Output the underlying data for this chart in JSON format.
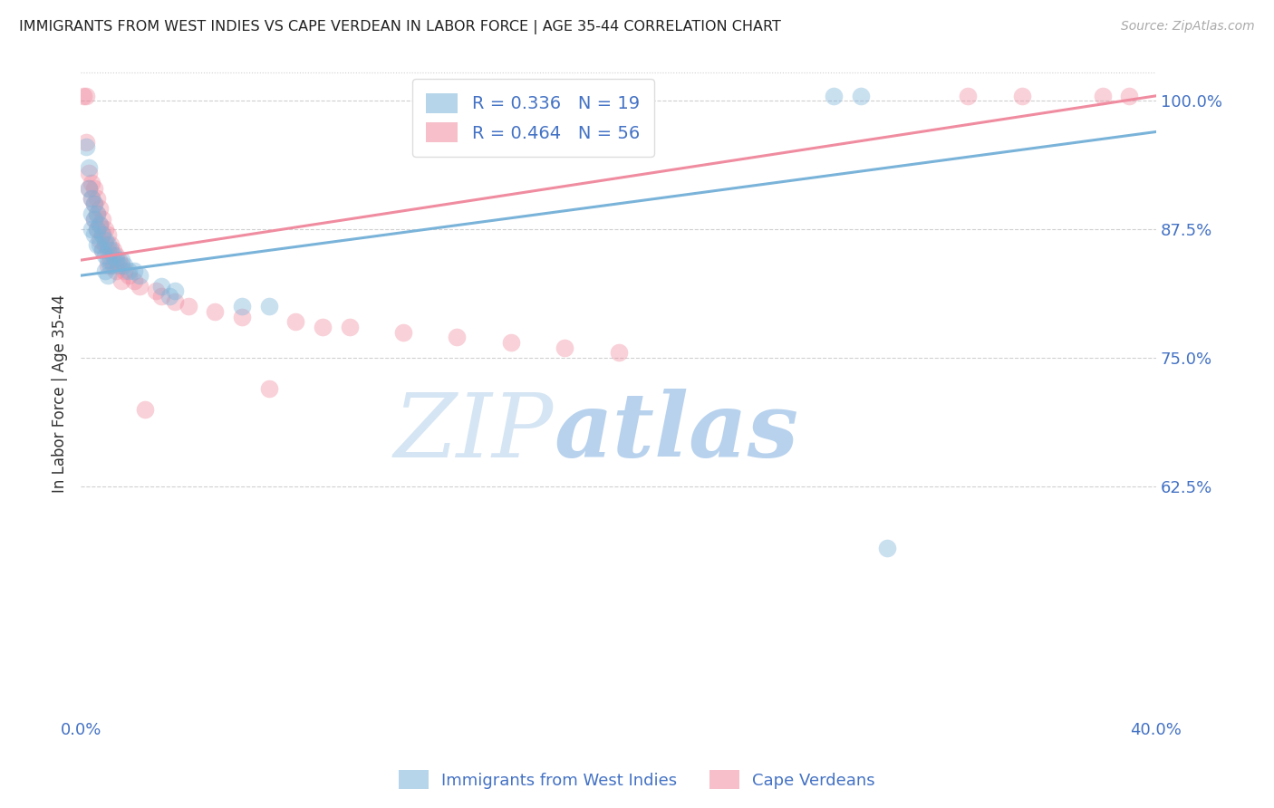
{
  "title": "IMMIGRANTS FROM WEST INDIES VS CAPE VERDEAN IN LABOR FORCE | AGE 35-44 CORRELATION CHART",
  "source": "Source: ZipAtlas.com",
  "ylabel": "In Labor Force | Age 35-44",
  "x_min": 0.0,
  "x_max": 0.4,
  "y_min": 0.4,
  "y_max": 1.03,
  "x_ticks": [
    0.0,
    0.05,
    0.1,
    0.15,
    0.2,
    0.25,
    0.3,
    0.35,
    0.4
  ],
  "x_tick_labels": [
    "0.0%",
    "",
    "",
    "",
    "",
    "",
    "",
    "",
    "40.0%"
  ],
  "y_ticks_right": [
    1.0,
    0.875,
    0.75,
    0.625
  ],
  "y_tick_labels_right": [
    "100.0%",
    "87.5%",
    "75.0%",
    "62.5%"
  ],
  "watermark_zip": "ZIP",
  "watermark_atlas": "atlas",
  "blue_color": "#7ab3d9",
  "pink_color": "#f08ca0",
  "blue_scatter": [
    [
      0.002,
      0.955
    ],
    [
      0.003,
      0.935
    ],
    [
      0.003,
      0.915
    ],
    [
      0.004,
      0.905
    ],
    [
      0.004,
      0.89
    ],
    [
      0.004,
      0.875
    ],
    [
      0.005,
      0.9
    ],
    [
      0.005,
      0.885
    ],
    [
      0.005,
      0.87
    ],
    [
      0.006,
      0.89
    ],
    [
      0.006,
      0.875
    ],
    [
      0.006,
      0.86
    ],
    [
      0.007,
      0.88
    ],
    [
      0.007,
      0.86
    ],
    [
      0.008,
      0.87
    ],
    [
      0.008,
      0.855
    ],
    [
      0.009,
      0.865
    ],
    [
      0.009,
      0.85
    ],
    [
      0.009,
      0.835
    ],
    [
      0.01,
      0.86
    ],
    [
      0.01,
      0.845
    ],
    [
      0.01,
      0.83
    ],
    [
      0.011,
      0.855
    ],
    [
      0.011,
      0.84
    ],
    [
      0.012,
      0.85
    ],
    [
      0.013,
      0.845
    ],
    [
      0.014,
      0.84
    ],
    [
      0.015,
      0.845
    ],
    [
      0.016,
      0.84
    ],
    [
      0.018,
      0.835
    ],
    [
      0.02,
      0.835
    ],
    [
      0.022,
      0.83
    ],
    [
      0.03,
      0.82
    ],
    [
      0.033,
      0.81
    ],
    [
      0.035,
      0.815
    ],
    [
      0.06,
      0.8
    ],
    [
      0.07,
      0.8
    ],
    [
      0.28,
      1.005
    ],
    [
      0.29,
      1.005
    ],
    [
      0.3,
      0.565
    ]
  ],
  "pink_scatter": [
    [
      0.001,
      1.005
    ],
    [
      0.002,
      1.005
    ],
    [
      0.002,
      0.96
    ],
    [
      0.003,
      0.93
    ],
    [
      0.003,
      0.915
    ],
    [
      0.004,
      0.92
    ],
    [
      0.004,
      0.905
    ],
    [
      0.005,
      0.915
    ],
    [
      0.005,
      0.9
    ],
    [
      0.005,
      0.885
    ],
    [
      0.006,
      0.905
    ],
    [
      0.006,
      0.89
    ],
    [
      0.006,
      0.875
    ],
    [
      0.007,
      0.895
    ],
    [
      0.007,
      0.88
    ],
    [
      0.007,
      0.865
    ],
    [
      0.008,
      0.885
    ],
    [
      0.008,
      0.87
    ],
    [
      0.008,
      0.855
    ],
    [
      0.009,
      0.875
    ],
    [
      0.009,
      0.86
    ],
    [
      0.01,
      0.87
    ],
    [
      0.01,
      0.855
    ],
    [
      0.01,
      0.84
    ],
    [
      0.011,
      0.86
    ],
    [
      0.011,
      0.845
    ],
    [
      0.012,
      0.855
    ],
    [
      0.012,
      0.84
    ],
    [
      0.013,
      0.85
    ],
    [
      0.013,
      0.835
    ],
    [
      0.014,
      0.845
    ],
    [
      0.015,
      0.84
    ],
    [
      0.015,
      0.825
    ],
    [
      0.016,
      0.835
    ],
    [
      0.018,
      0.83
    ],
    [
      0.02,
      0.825
    ],
    [
      0.022,
      0.82
    ],
    [
      0.024,
      0.7
    ],
    [
      0.028,
      0.815
    ],
    [
      0.03,
      0.81
    ],
    [
      0.035,
      0.805
    ],
    [
      0.04,
      0.8
    ],
    [
      0.05,
      0.795
    ],
    [
      0.06,
      0.79
    ],
    [
      0.07,
      0.72
    ],
    [
      0.08,
      0.785
    ],
    [
      0.09,
      0.78
    ],
    [
      0.1,
      0.78
    ],
    [
      0.12,
      0.775
    ],
    [
      0.14,
      0.77
    ],
    [
      0.16,
      0.765
    ],
    [
      0.18,
      0.76
    ],
    [
      0.2,
      0.755
    ],
    [
      0.33,
      1.005
    ],
    [
      0.35,
      1.005
    ],
    [
      0.38,
      1.005
    ],
    [
      0.39,
      1.005
    ]
  ],
  "blue_line_x": [
    0.0,
    0.4
  ],
  "blue_line_y": [
    0.83,
    0.97
  ],
  "pink_line_x": [
    0.0,
    0.4
  ],
  "pink_line_y": [
    0.845,
    1.005
  ],
  "axis_color": "#4472c4",
  "grid_color": "#d0d0d0",
  "title_color": "#222222",
  "tick_color": "#4472c4",
  "background_color": "#ffffff"
}
